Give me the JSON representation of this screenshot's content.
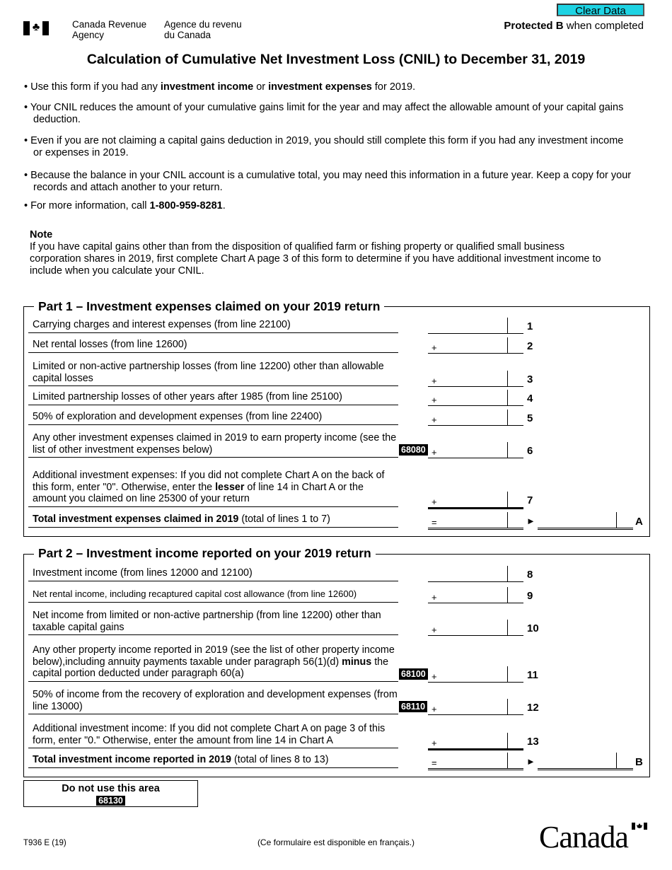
{
  "header": {
    "agency_en": [
      "Canada Revenue",
      "Agency"
    ],
    "agency_fr": [
      "Agence du revenu",
      "du Canada"
    ],
    "clear_button": "Clear Data",
    "protected_bold": "Protected B",
    "protected_rest": " when completed",
    "title": "Calculation of Cumulative Net Investment Loss (CNIL) to December 31, 2019",
    "accent_color": "#1ed3e3"
  },
  "bullets": [
    [
      {
        "t": "• Use this form if you had any "
      },
      {
        "t": "investment income",
        "b": true
      },
      {
        "t": " or "
      },
      {
        "t": "investment expenses",
        "b": true
      },
      {
        "t": " for 2019."
      }
    ],
    [
      {
        "t": "• Your CNIL reduces the amount of your cumulative gains limit for the year and may affect the allowable amount of your capital gains deduction."
      }
    ],
    [
      {
        "t": "• Even if you are not claiming a capital gains deduction in 2019, you should still complete this form if you had any investment income or expenses in 2019."
      }
    ],
    [
      {
        "t": "• Because the balance in your CNIL account is a cumulative total, you may need this information in a future year. Keep a copy for your records and attach another to your return."
      }
    ],
    [
      {
        "t": "• For more information, call "
      },
      {
        "t": "1-800-959-8281",
        "b": true
      },
      {
        "t": "."
      }
    ]
  ],
  "note": {
    "heading": "Note",
    "text": "If you have capital gains other than from the disposition of qualified farm or fishing property or qualified small business corporation shares in 2019, first complete Chart A page 3 of this form to determine if you have additional investment income to include when you calculate your CNIL."
  },
  "part1": {
    "title": "Part 1 – Investment expenses claimed on your 2019 return",
    "rows": [
      {
        "line": "1",
        "op": "",
        "desc": [
          {
            "t": "Carrying charges and interest expenses (from line 22100)"
          }
        ]
      },
      {
        "line": "2",
        "op": "+",
        "desc": [
          {
            "t": "Net rental losses (from line 12600)"
          }
        ]
      },
      {
        "line": "3",
        "op": "+",
        "desc": [
          {
            "t": "Limited or non-active partnership losses (from line 12200) other than allowable capital losses"
          }
        ]
      },
      {
        "line": "4",
        "op": "+",
        "desc": [
          {
            "t": "Limited partnership losses of other years after 1985 (from line 25100)"
          }
        ]
      },
      {
        "line": "5",
        "op": "+",
        "desc": [
          {
            "t": "50% of exploration and development expenses (from line 22400)"
          }
        ]
      },
      {
        "line": "6",
        "op": "+",
        "code": "68080",
        "desc": [
          {
            "t": "Any other investment expenses claimed in 2019 to earn property income (see the list of other investment expenses below)"
          }
        ]
      },
      {
        "line": "7",
        "op": "+",
        "desc": [
          {
            "t": "Additional investment expenses: If you did not complete Chart A on the back of this form, enter \"0\". Otherwise, enter the "
          },
          {
            "t": "lesser",
            "b": true
          },
          {
            "t": " of line 14 in Chart A or the amount you claimed on line 25300 of your return"
          }
        ]
      }
    ],
    "total": {
      "op": "=",
      "arrow": "►",
      "label": "A",
      "desc": [
        {
          "t": "Total investment expenses claimed in 2019",
          "b": true
        },
        {
          "t": " (total of lines 1 to 7)"
        }
      ]
    }
  },
  "part2": {
    "title": "Part 2 – Investment income reported on your 2019 return",
    "rows": [
      {
        "line": "8",
        "op": "",
        "desc": [
          {
            "t": "Investment income (from lines 12000 and 12100)"
          }
        ]
      },
      {
        "line": "9",
        "op": "+",
        "desc": [
          {
            "t": "Net rental income, including recaptured capital cost allowance (from line 12600)"
          }
        ]
      },
      {
        "line": "10",
        "op": "+",
        "desc": [
          {
            "t": "Net income from limited or non-active partnership (from line 12200) other than taxable capital gains"
          }
        ]
      },
      {
        "line": "11",
        "op": "+",
        "code": "68100",
        "desc": [
          {
            "t": "Any other property income reported in 2019 (see the list of other property income below),including annuity payments taxable under paragraph 56(1)(d) "
          },
          {
            "t": "minus",
            "b": true
          },
          {
            "t": " the capital portion deducted under paragraph 60(a)"
          }
        ]
      },
      {
        "line": "12",
        "op": "+",
        "code": "68110",
        "desc": [
          {
            "t": "50% of income from the recovery of exploration and development expenses (from line 13000)"
          }
        ]
      },
      {
        "line": "13",
        "op": "+",
        "desc": [
          {
            "t": "Additional investment income: If you did not complete Chart A on page 3 of this form, enter \"0.\" Otherwise, enter the amount from line 14 in Chart A"
          }
        ]
      }
    ],
    "total": {
      "op": "=",
      "arrow": "►",
      "label": "B",
      "desc": [
        {
          "t": "Total investment income reported in 2019",
          "b": true
        },
        {
          "t": " (total of lines 8 to 13)"
        }
      ]
    }
  },
  "footer": {
    "do_not_use": "Do not use this area",
    "do_not_use_code": "68130",
    "form_number": "T936 E (19)",
    "french_note": "(Ce formulaire est disponible en français.)",
    "wordmark": "Canadä"
  }
}
